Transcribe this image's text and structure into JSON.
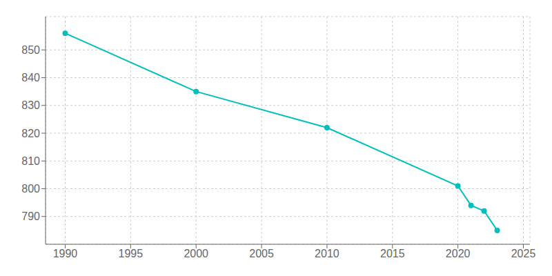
{
  "chart_data": {
    "type": "line",
    "x": [
      1990,
      2000,
      2010,
      2020,
      2021,
      2022,
      2023
    ],
    "values": [
      856,
      835,
      822,
      801,
      794,
      792,
      785
    ],
    "color": "#00BFBF",
    "marker": "o",
    "xlim": [
      1988.5,
      2025.5
    ],
    "xticks": [
      1990,
      1995,
      2000,
      2005,
      2010,
      2015,
      2020,
      2025
    ],
    "ylim": [
      780,
      862
    ],
    "yticks": [
      790,
      800,
      810,
      820,
      830,
      840,
      850
    ],
    "grid": true
  }
}
